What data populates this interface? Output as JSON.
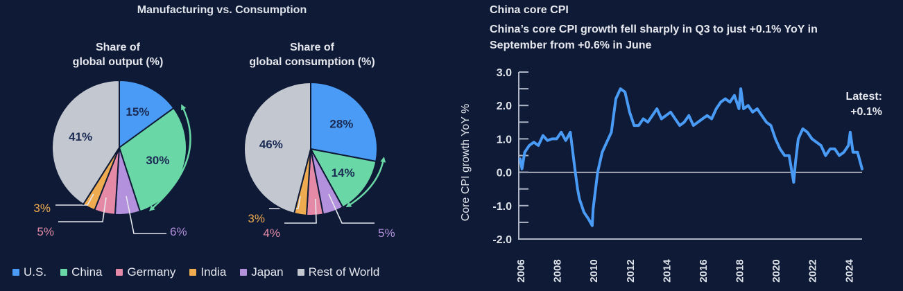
{
  "left_panel": {
    "title": "Manufacturing vs. Consumption",
    "legend": [
      {
        "label": "U.S.",
        "color": "#4a9bf5"
      },
      {
        "label": "China",
        "color": "#6ad8a6"
      },
      {
        "label": "Germany",
        "color": "#e58aa6"
      },
      {
        "label": "India",
        "color": "#eeab4f"
      },
      {
        "label": "Japan",
        "color": "#b491dc"
      },
      {
        "label": "Rest of World",
        "color": "#c2c7d0"
      }
    ],
    "arrow_color": "#6ad8a6"
  },
  "right_panel": {
    "title": "China core CPI",
    "subtitle": "China’s core CPI growth fell sharply in Q3 to just +0.1% YoY in September  from +0.6% in June",
    "annotation_line1": "Latest:",
    "annotation_line2": "+0.1%",
    "line_color": "#4a9bf5"
  },
  "chart_data": [
    {
      "type": "pie",
      "title": "Share of global output (%)",
      "title_line1": "Share of",
      "title_line2": "global output (%)",
      "categories": [
        "U.S.",
        "China",
        "Japan",
        "Germany",
        "India",
        "Rest of World"
      ],
      "values": [
        15,
        30,
        6,
        5,
        3,
        41
      ],
      "labels": [
        "15%",
        "30%",
        "6%",
        "5%",
        "3%",
        "41%"
      ]
    },
    {
      "type": "pie",
      "title": "Share of global consumption (%)",
      "title_line1": "Share of",
      "title_line2": "global consumption (%)",
      "categories": [
        "U.S.",
        "China",
        "Japan",
        "Germany",
        "India",
        "Rest of World"
      ],
      "values": [
        28,
        14,
        5,
        4,
        3,
        46
      ],
      "labels": [
        "28%",
        "14%",
        "5%",
        "4%",
        "3%",
        "46%"
      ]
    },
    {
      "type": "line",
      "title": "China core CPI",
      "xlabel": "",
      "ylabel": "Core CPI growth YoY %",
      "ylim": [
        -2.0,
        3.0
      ],
      "xlim": [
        2006,
        2024.75
      ],
      "yticks": [
        "3.0",
        "2.0",
        "1.0",
        "0.0",
        "-1.0",
        "-2.0"
      ],
      "ytick_values": [
        3,
        2,
        1,
        0,
        -1,
        -2
      ],
      "xticks": [
        "2006",
        "2008",
        "2010",
        "2012",
        "2014",
        "2016",
        "2018",
        "2020",
        "2022",
        "2024"
      ],
      "xtick_values": [
        2006,
        2008,
        2010,
        2012,
        2014,
        2016,
        2018,
        2020,
        2022,
        2024
      ],
      "series": [
        {
          "name": "China core CPI YoY",
          "x": [
            2006.0,
            2006.1,
            2006.25,
            2006.5,
            2006.75,
            2007.0,
            2007.25,
            2007.5,
            2007.75,
            2008.0,
            2008.25,
            2008.5,
            2008.75,
            2009.0,
            2009.15,
            2009.25,
            2009.5,
            2009.75,
            2009.95,
            2010.0,
            2010.25,
            2010.5,
            2010.75,
            2011.0,
            2011.25,
            2011.5,
            2011.75,
            2012.0,
            2012.25,
            2012.5,
            2012.75,
            2013.0,
            2013.25,
            2013.5,
            2013.75,
            2014.0,
            2014.25,
            2014.5,
            2014.75,
            2015.0,
            2015.25,
            2015.5,
            2015.75,
            2016.0,
            2016.25,
            2016.5,
            2016.75,
            2017.0,
            2017.25,
            2017.5,
            2017.75,
            2018.0,
            2018.1,
            2018.25,
            2018.5,
            2018.75,
            2019.0,
            2019.25,
            2019.5,
            2019.75,
            2020.0,
            2020.25,
            2020.5,
            2020.75,
            2021.0,
            2021.1,
            2021.25,
            2021.5,
            2021.75,
            2022.0,
            2022.25,
            2022.5,
            2022.75,
            2023.0,
            2023.25,
            2023.5,
            2023.75,
            2024.0,
            2024.1,
            2024.25,
            2024.5,
            2024.75
          ],
          "values": [
            0.4,
            0.1,
            0.6,
            0.8,
            0.9,
            0.8,
            1.1,
            0.95,
            1.0,
            1.0,
            1.2,
            0.95,
            1.2,
            0.1,
            -0.5,
            -0.8,
            -1.2,
            -1.4,
            -1.6,
            -1.1,
            0.0,
            0.6,
            0.9,
            1.2,
            2.2,
            2.5,
            2.4,
            1.8,
            1.4,
            1.4,
            1.6,
            1.5,
            1.7,
            1.9,
            1.6,
            1.7,
            1.8,
            1.6,
            1.4,
            1.5,
            1.7,
            1.4,
            1.5,
            1.6,
            1.7,
            1.6,
            1.9,
            2.1,
            2.2,
            2.1,
            2.3,
            1.9,
            2.5,
            1.9,
            2.0,
            1.8,
            1.9,
            1.7,
            1.5,
            1.4,
            1.0,
            0.7,
            0.5,
            0.5,
            -0.3,
            0.3,
            1.0,
            1.3,
            1.2,
            1.0,
            0.9,
            0.8,
            0.5,
            0.7,
            0.7,
            0.5,
            0.6,
            0.8,
            1.2,
            0.6,
            0.6,
            0.1
          ]
        }
      ]
    }
  ]
}
